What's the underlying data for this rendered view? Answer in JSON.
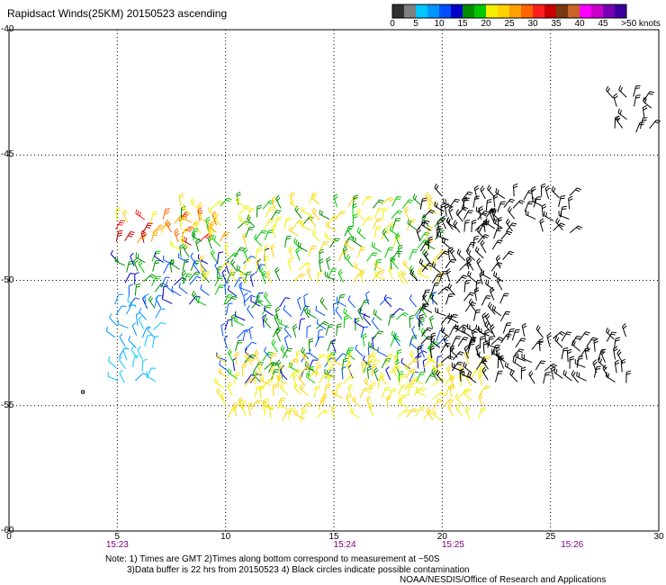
{
  "title": "Rapidsact Winds(25KM) 20150523 ascending",
  "colorbar": {
    "labels": [
      "0",
      "5",
      "10",
      "15",
      "20",
      "25",
      "30",
      "35",
      "40",
      "45",
      ">50 knots"
    ],
    "colors": [
      "#303030",
      "#808080",
      "#00c8ff",
      "#0096ff",
      "#0050ff",
      "#0000c8",
      "#008c00",
      "#00c800",
      "#f0f000",
      "#ffd200",
      "#ffa000",
      "#ff6400",
      "#ff1e1e",
      "#c80000",
      "#7a3a10",
      "#c86428",
      "#ff00ff",
      "#c800c8",
      "#7800b4",
      "#3c00a0"
    ]
  },
  "notes": {
    "line1": "Note: 1) Times are GMT 2)Times along bottom correspond to measurement at ~50S",
    "line2": "3)Data buffer is 22 hrs from 20150523 4) Black circles indicate possible contamination",
    "line3": "NOAA/NESDIS/Office of Research and Applications"
  },
  "chart_data": {
    "type": "wind barb map",
    "title": "Rapidsact Winds(25KM) 20150523 ascending",
    "xlim": [
      0,
      30
    ],
    "ylim": [
      -60,
      -40
    ],
    "x_ticks": [
      0,
      5,
      10,
      15,
      20,
      25,
      30
    ],
    "y_ticks": [
      -40,
      -45,
      -50,
      -55,
      -60
    ],
    "x_tick_labels": [
      "0",
      "5",
      "10",
      "15",
      "20",
      "25",
      "30"
    ],
    "y_tick_labels": [
      "-40",
      "-45",
      "-50",
      "-55",
      "-60"
    ],
    "grid": true,
    "time_labels": [
      {
        "x": 5,
        "label": "15:23"
      },
      {
        "x": 15.5,
        "label": "15:24"
      },
      {
        "x": 20.5,
        "label": "15:25"
      },
      {
        "x": 26,
        "label": "15:26"
      }
    ],
    "speed_units": "knots",
    "swath_regions": [
      {
        "lon": [
          5,
          10
        ],
        "lat": [
          -48.5,
          -47.5
        ],
        "speed_range": [
          20,
          35
        ],
        "note": "orange/red band near top of swath"
      },
      {
        "lon": [
          5,
          12
        ],
        "lat": [
          -51,
          -49
        ],
        "speed_range": [
          10,
          20
        ],
        "note": "blue/green"
      },
      {
        "lon": [
          5,
          7
        ],
        "lat": [
          -54,
          -51
        ],
        "speed_range": [
          5,
          10
        ],
        "note": "light blue"
      },
      {
        "lon": [
          8,
          20
        ],
        "lat": [
          -50,
          -47
        ],
        "speed_range": [
          15,
          25
        ],
        "note": "green/yellow"
      },
      {
        "lon": [
          10,
          20
        ],
        "lat": [
          -54,
          -51
        ],
        "speed_range": [
          10,
          20
        ],
        "note": "blue/green"
      },
      {
        "lon": [
          10,
          22
        ],
        "lat": [
          -55.5,
          -53
        ],
        "speed_range": [
          20,
          25
        ],
        "note": "yellow"
      },
      {
        "lon": [
          19,
          23
        ],
        "lat": [
          -53,
          -47
        ],
        "speed_range": [
          0,
          50
        ],
        "note": "black - possible contamination"
      },
      {
        "lon": [
          20,
          28.5
        ],
        "lat": [
          -54,
          -52
        ],
        "speed_range": [
          0,
          50
        ],
        "note": "black - possible contamination"
      },
      {
        "lon": [
          20,
          26
        ],
        "lat": [
          -48,
          -46.5
        ],
        "speed_range": [
          0,
          50
        ],
        "note": "black - possible contamination"
      },
      {
        "lon": [
          28,
          30
        ],
        "lat": [
          -44,
          -42.5
        ],
        "speed_range": [
          0,
          50
        ],
        "note": "black - possible contamination"
      }
    ]
  }
}
